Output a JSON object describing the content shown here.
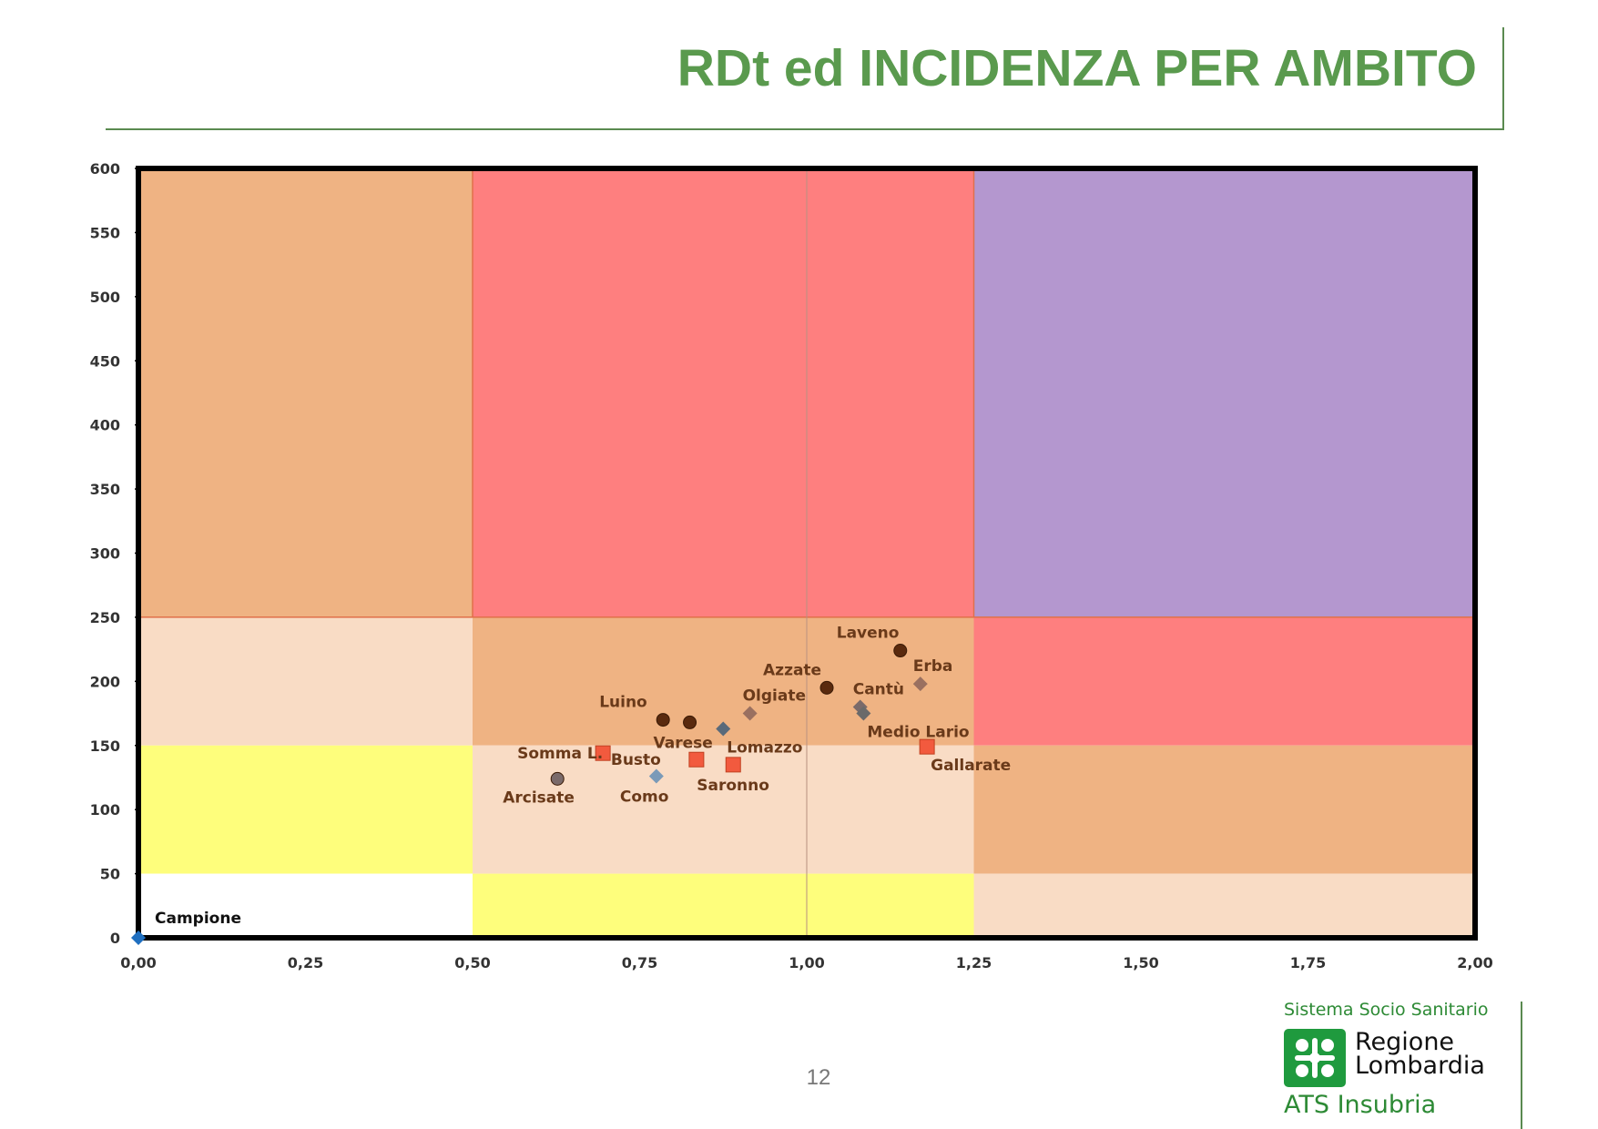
{
  "slide": {
    "title": "RDt ed INCIDENZA PER AMBITO",
    "page_number": "12"
  },
  "logo": {
    "top_text": "Sistema Socio Sanitario",
    "name_line1": "Regione",
    "name_line2": "Lombardia",
    "subtitle": "ATS Insubria"
  },
  "colors": {
    "title": "#5a9a4e",
    "light_peach": "#f9dcc5",
    "orange": "#efb383",
    "red": "#fe7f7f",
    "purple": "#b497cf",
    "yellow": "#fefe7c",
    "white": "#ffffff"
  },
  "chart_data": {
    "type": "scatter",
    "title": "",
    "xlabel": "",
    "ylabel": "",
    "xlim": [
      0,
      2
    ],
    "ylim": [
      0,
      600
    ],
    "x_ticks": [
      "0,00",
      "0,25",
      "0,50",
      "0,75",
      "1,00",
      "1,25",
      "1,50",
      "1,75",
      "2,00"
    ],
    "y_ticks": [
      "0",
      "50",
      "100",
      "150",
      "200",
      "250",
      "300",
      "350",
      "400",
      "450",
      "500",
      "550",
      "600"
    ],
    "grid": false,
    "background_zones": [
      {
        "x0": 0,
        "x1": 0.5,
        "y0": 250,
        "y1": 600,
        "color": "orange"
      },
      {
        "x0": 0.5,
        "x1": 1.25,
        "y0": 250,
        "y1": 600,
        "color": "red"
      },
      {
        "x0": 1.25,
        "x1": 2,
        "y0": 250,
        "y1": 600,
        "color": "purple"
      },
      {
        "x0": 0,
        "x1": 0.5,
        "y0": 150,
        "y1": 250,
        "color": "light_peach"
      },
      {
        "x0": 0.5,
        "x1": 1.25,
        "y0": 150,
        "y1": 250,
        "color": "orange"
      },
      {
        "x0": 1.25,
        "x1": 2,
        "y0": 150,
        "y1": 250,
        "color": "red"
      },
      {
        "x0": 0,
        "x1": 0.5,
        "y0": 50,
        "y1": 150,
        "color": "yellow"
      },
      {
        "x0": 0.5,
        "x1": 1.25,
        "y0": 50,
        "y1": 150,
        "color": "light_peach"
      },
      {
        "x0": 1.25,
        "x1": 2,
        "y0": 50,
        "y1": 150,
        "color": "orange"
      },
      {
        "x0": 0,
        "x1": 0.5,
        "y0": 0,
        "y1": 50,
        "color": "white"
      },
      {
        "x0": 0.5,
        "x1": 1.25,
        "y0": 0,
        "y1": 50,
        "color": "yellow"
      },
      {
        "x0": 1.25,
        "x1": 2,
        "y0": 0,
        "y1": 50,
        "color": "light_peach"
      }
    ],
    "points": [
      {
        "label": "Campione",
        "x": 0.0,
        "y": 0,
        "marker": "diamond",
        "color": "#1f6fc0",
        "label_pos": "upper-right"
      },
      {
        "label": "Laveno",
        "x": 1.14,
        "y": 224,
        "marker": "circle",
        "color": "#5a2a0e",
        "label_pos": "upper-left"
      },
      {
        "label": "Erba",
        "x": 1.17,
        "y": 198,
        "marker": "diamond",
        "color": "#9a7060",
        "label_pos": "upper"
      },
      {
        "label": "Azzate",
        "x": 1.03,
        "y": 195,
        "marker": "circle",
        "color": "#5a2a0e",
        "label_pos": "upper-left"
      },
      {
        "label": "Cantù",
        "x": 1.08,
        "y": 180,
        "marker": "diamond",
        "color": "#7a6a6a",
        "label_pos": "upper-right"
      },
      {
        "label": "Medio Lario",
        "x": 1.085,
        "y": 175,
        "marker": "diamond",
        "color": "#6a6a6a",
        "label_pos": "lower-right"
      },
      {
        "label": "Luino",
        "x": 0.785,
        "y": 170,
        "marker": "circle",
        "color": "#5a2a0e",
        "label_pos": "upper-left"
      },
      {
        "label": "Varese",
        "x": 0.825,
        "y": 168,
        "marker": "circle",
        "color": "#5a2a0e",
        "label_pos": "lower"
      },
      {
        "label": "Olgiate",
        "x": 0.915,
        "y": 175,
        "marker": "diamond",
        "color": "#9a7060",
        "label_pos": "upper"
      },
      {
        "label": "Lomazzo",
        "x": 0.875,
        "y": 163,
        "marker": "diamond",
        "color": "#5a6a7a",
        "label_pos": "lower-right"
      },
      {
        "label": "Somma L.",
        "x": 0.695,
        "y": 144,
        "marker": "square",
        "color": "#f25a3e",
        "label_pos": "left"
      },
      {
        "label": "Busto",
        "x": 0.835,
        "y": 139,
        "marker": "square",
        "color": "#f25a3e",
        "label_pos": "left"
      },
      {
        "label": "Saronno",
        "x": 0.89,
        "y": 135,
        "marker": "square",
        "color": "#f25a3e",
        "label_pos": "lower"
      },
      {
        "label": "Gallarate",
        "x": 1.18,
        "y": 149,
        "marker": "square",
        "color": "#f25a3e",
        "label_pos": "lower-right"
      },
      {
        "label": "Arcisate",
        "x": 0.627,
        "y": 124,
        "marker": "circle",
        "color": "#7a6a6a",
        "label_pos": "lower-left"
      },
      {
        "label": "Como",
        "x": 0.775,
        "y": 126,
        "marker": "diamond",
        "color": "#7a9ab8",
        "label_pos": "lower"
      }
    ]
  }
}
